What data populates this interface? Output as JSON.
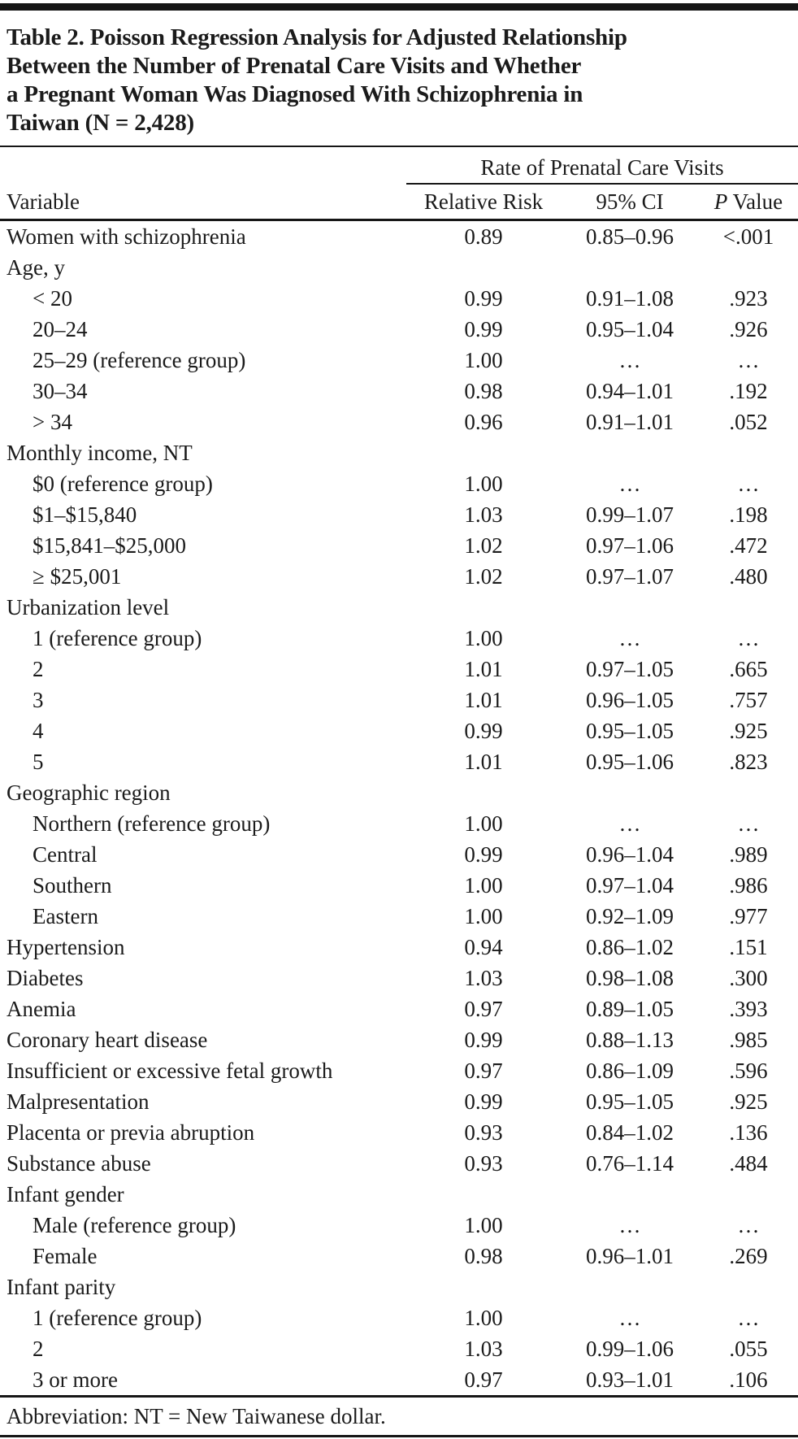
{
  "title_lines": [
    "Table 2. Poisson Regression Analysis for Adjusted Relationship",
    "Between the Number of Prenatal Care Visits and Whether",
    "a Pregnant Woman Was Diagnosed With Schizophrenia in",
    "Taiwan (N = 2,428)"
  ],
  "table": {
    "spanner": "Rate of Prenatal Care Visits",
    "columns": {
      "variable": "Variable",
      "relative_risk": "Relative Risk",
      "ci": "95% CI",
      "p_italic": "P",
      "p_rest": " Value"
    },
    "rows": [
      {
        "label": "Women with schizophrenia",
        "indent": 0,
        "rr": "0.89",
        "ci": "0.85–0.96",
        "p": "<.001"
      },
      {
        "label": "Age, y",
        "indent": 0,
        "rr": "",
        "ci": "",
        "p": ""
      },
      {
        "label": "< 20",
        "indent": 1,
        "rr": "0.99",
        "ci": "0.91–1.08",
        "p": ".923"
      },
      {
        "label": "20–24",
        "indent": 1,
        "rr": "0.99",
        "ci": "0.95–1.04",
        "p": ".926"
      },
      {
        "label": "25–29 (reference group)",
        "indent": 1,
        "rr": "1.00",
        "ci": "…",
        "p": "…"
      },
      {
        "label": "30–34",
        "indent": 1,
        "rr": "0.98",
        "ci": "0.94–1.01",
        "p": ".192"
      },
      {
        "label": "> 34",
        "indent": 1,
        "rr": "0.96",
        "ci": "0.91–1.01",
        "p": ".052"
      },
      {
        "label": "Monthly income, NT",
        "indent": 0,
        "rr": "",
        "ci": "",
        "p": ""
      },
      {
        "label": "$0 (reference group)",
        "indent": 1,
        "rr": "1.00",
        "ci": "…",
        "p": "…"
      },
      {
        "label": "$1–$15,840",
        "indent": 1,
        "rr": "1.03",
        "ci": "0.99–1.07",
        "p": ".198"
      },
      {
        "label": "$15,841–$25,000",
        "indent": 1,
        "rr": "1.02",
        "ci": "0.97–1.06",
        "p": ".472"
      },
      {
        "label": "≥ $25,001",
        "indent": 1,
        "rr": "1.02",
        "ci": "0.97–1.07",
        "p": ".480"
      },
      {
        "label": "Urbanization level",
        "indent": 0,
        "rr": "",
        "ci": "",
        "p": ""
      },
      {
        "label": "1 (reference group)",
        "indent": 1,
        "rr": "1.00",
        "ci": "…",
        "p": "…"
      },
      {
        "label": "2",
        "indent": 1,
        "rr": "1.01",
        "ci": "0.97–1.05",
        "p": ".665"
      },
      {
        "label": "3",
        "indent": 1,
        "rr": "1.01",
        "ci": "0.96–1.05",
        "p": ".757"
      },
      {
        "label": "4",
        "indent": 1,
        "rr": "0.99",
        "ci": "0.95–1.05",
        "p": ".925"
      },
      {
        "label": "5",
        "indent": 1,
        "rr": "1.01",
        "ci": "0.95–1.06",
        "p": ".823"
      },
      {
        "label": "Geographic region",
        "indent": 0,
        "rr": "",
        "ci": "",
        "p": ""
      },
      {
        "label": "Northern (reference group)",
        "indent": 1,
        "rr": "1.00",
        "ci": "…",
        "p": "…"
      },
      {
        "label": "Central",
        "indent": 1,
        "rr": "0.99",
        "ci": "0.96–1.04",
        "p": ".989"
      },
      {
        "label": "Southern",
        "indent": 1,
        "rr": "1.00",
        "ci": "0.97–1.04",
        "p": ".986"
      },
      {
        "label": "Eastern",
        "indent": 1,
        "rr": "1.00",
        "ci": "0.92–1.09",
        "p": ".977"
      },
      {
        "label": "Hypertension",
        "indent": 0,
        "rr": "0.94",
        "ci": "0.86–1.02",
        "p": ".151"
      },
      {
        "label": "Diabetes",
        "indent": 0,
        "rr": "1.03",
        "ci": "0.98–1.08",
        "p": ".300"
      },
      {
        "label": "Anemia",
        "indent": 0,
        "rr": "0.97",
        "ci": "0.89–1.05",
        "p": ".393"
      },
      {
        "label": "Coronary heart disease",
        "indent": 0,
        "rr": "0.99",
        "ci": "0.88–1.13",
        "p": ".985"
      },
      {
        "label": "Insufficient or excessive fetal growth",
        "indent": 0,
        "rr": "0.97",
        "ci": "0.86–1.09",
        "p": ".596"
      },
      {
        "label": "Malpresentation",
        "indent": 0,
        "rr": "0.99",
        "ci": "0.95–1.05",
        "p": ".925"
      },
      {
        "label": "Placenta or previa abruption",
        "indent": 0,
        "rr": "0.93",
        "ci": "0.84–1.02",
        "p": ".136"
      },
      {
        "label": "Substance abuse",
        "indent": 0,
        "rr": "0.93",
        "ci": "0.76–1.14",
        "p": ".484"
      },
      {
        "label": "Infant gender",
        "indent": 0,
        "rr": "",
        "ci": "",
        "p": ""
      },
      {
        "label": "Male (reference group)",
        "indent": 1,
        "rr": "1.00",
        "ci": "…",
        "p": "…"
      },
      {
        "label": "Female",
        "indent": 1,
        "rr": "0.98",
        "ci": "0.96–1.01",
        "p": ".269"
      },
      {
        "label": "Infant parity",
        "indent": 0,
        "rr": "",
        "ci": "",
        "p": ""
      },
      {
        "label": "1 (reference group)",
        "indent": 1,
        "rr": "1.00",
        "ci": "…",
        "p": "…"
      },
      {
        "label": "2",
        "indent": 1,
        "rr": "1.03",
        "ci": "0.99–1.06",
        "p": ".055"
      },
      {
        "label": "3 or more",
        "indent": 1,
        "rr": "0.97",
        "ci": "0.93–1.01",
        "p": ".106"
      }
    ]
  },
  "footnote": "Abbreviation: NT = New Taiwanese dollar.",
  "colors": {
    "text": "#1b1b1b",
    "rule": "#161616",
    "background": "#ffffff"
  }
}
